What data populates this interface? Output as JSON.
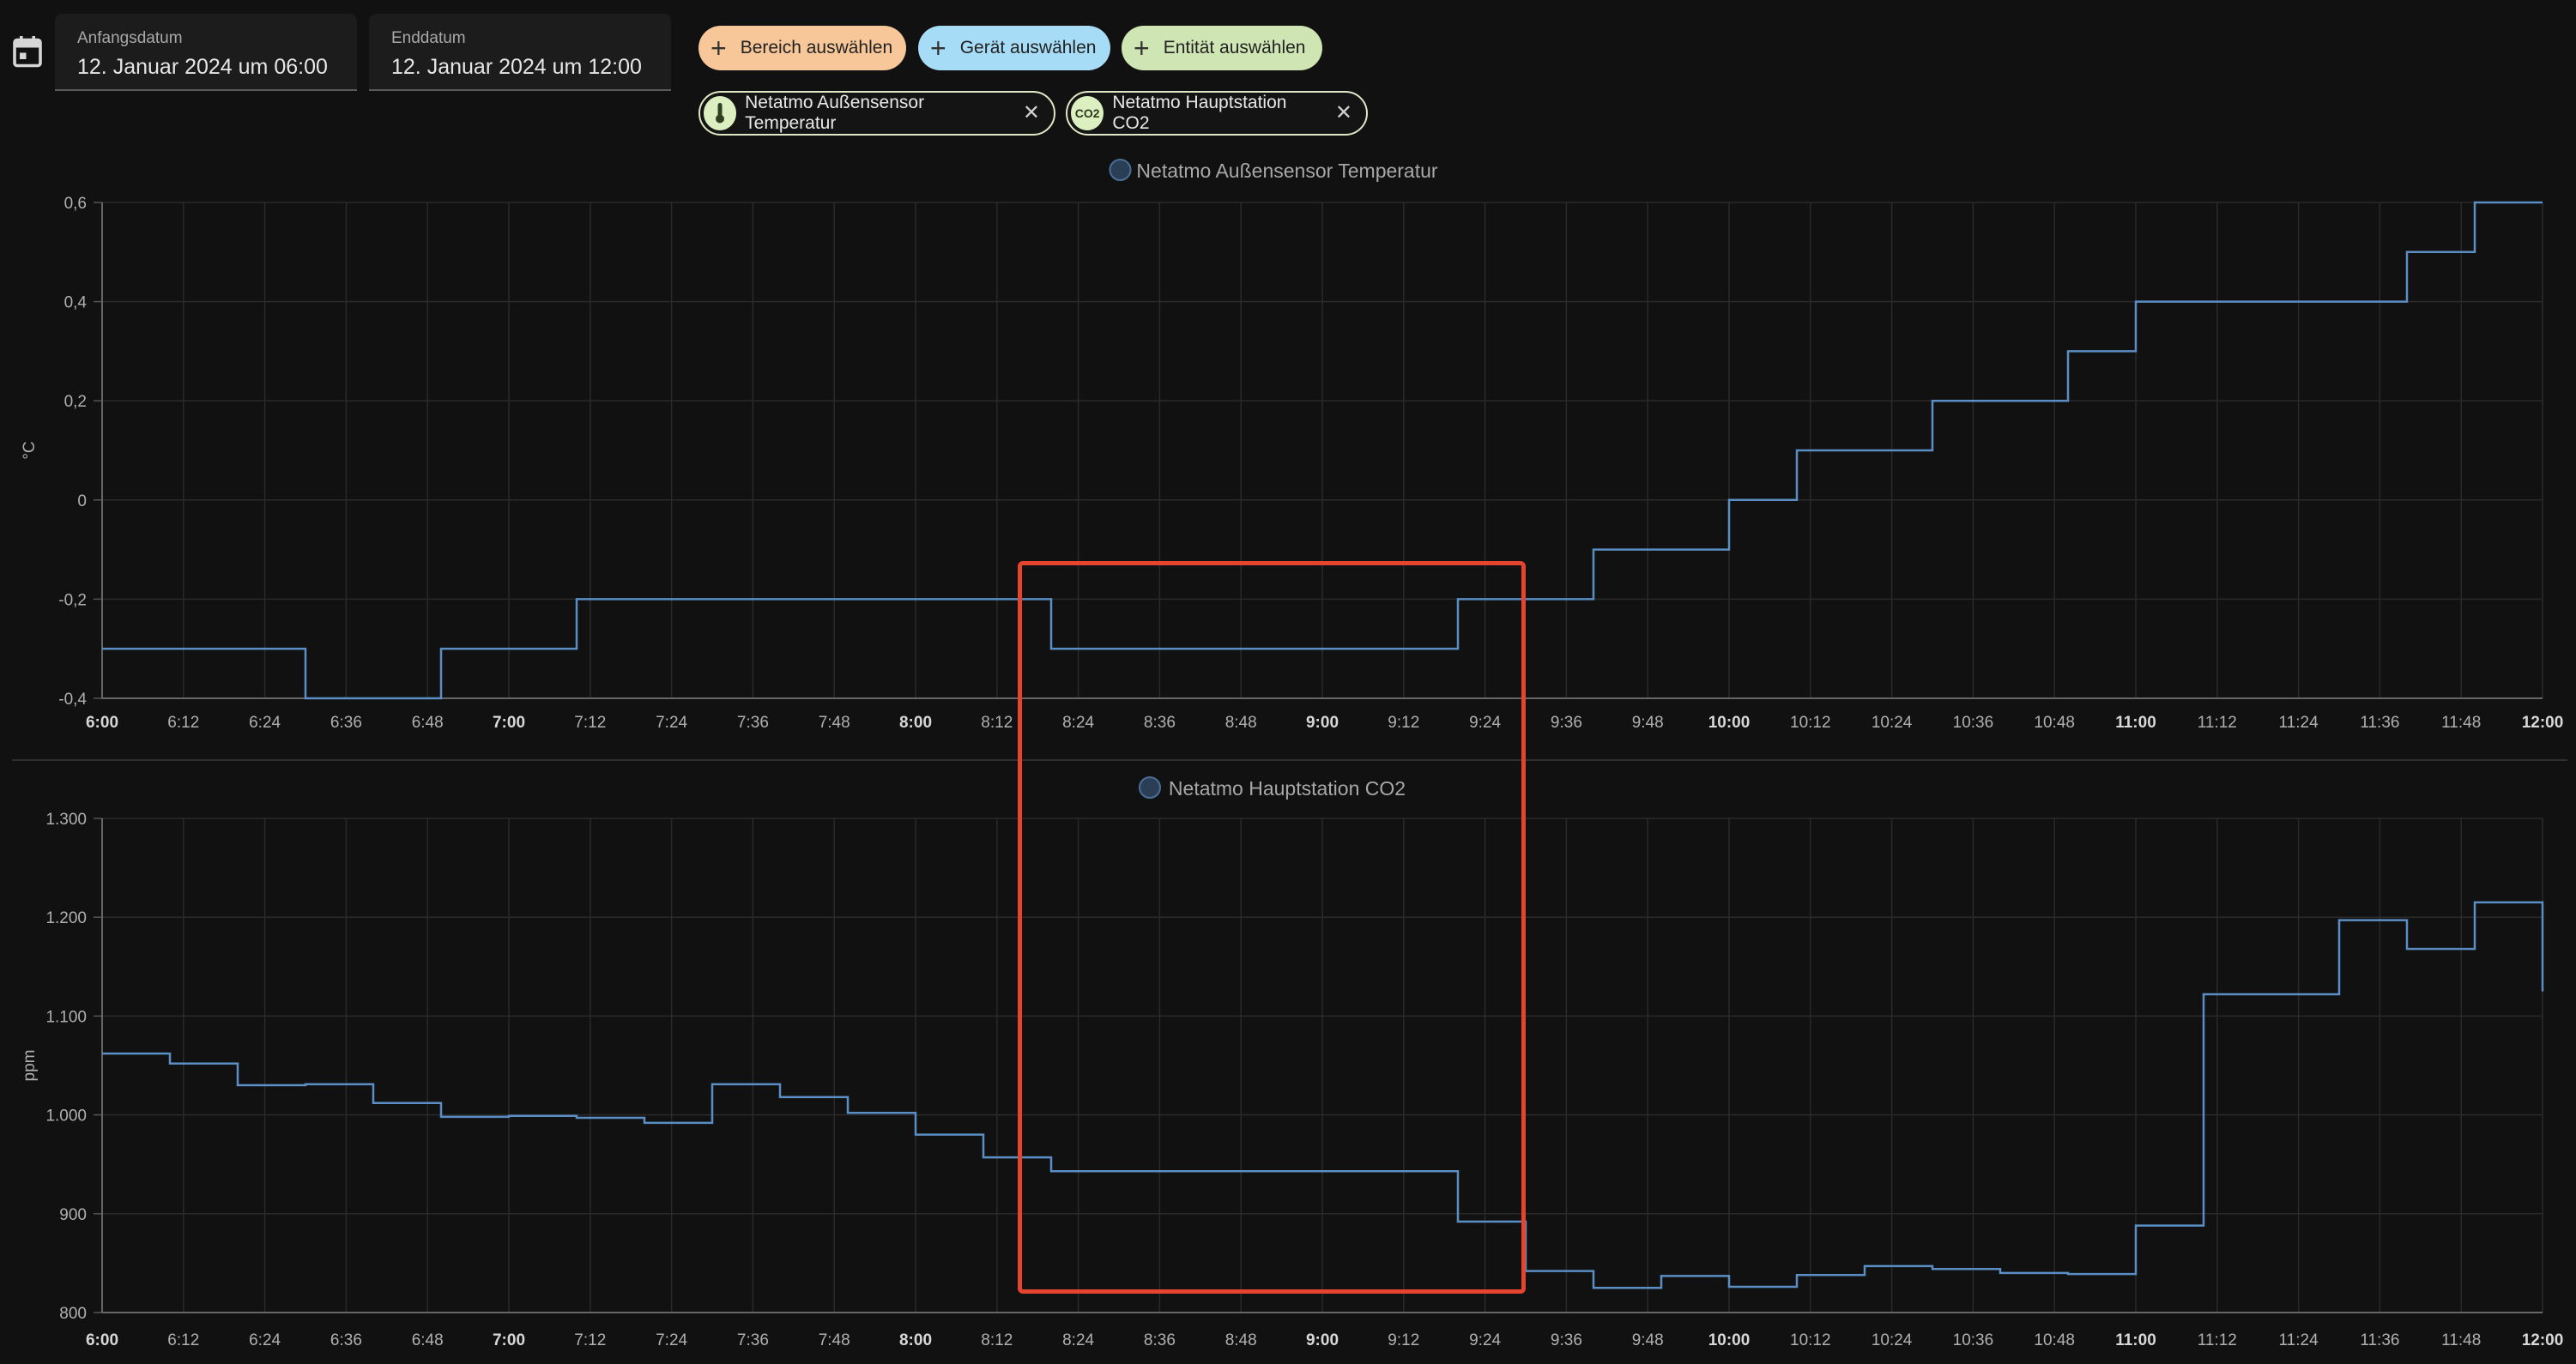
{
  "filters": {
    "start_date": {
      "label": "Anfangsdatum",
      "value": "12. Januar 2024 um 06:00"
    },
    "end_date": {
      "label": "Enddatum",
      "value": "12. Januar 2024 um 12:00"
    },
    "add_chips": [
      {
        "label": "Bereich auswählen",
        "color": "#f7c79a"
      },
      {
        "label": "Gerät auswählen",
        "color": "#a6dcf5"
      },
      {
        "label": "Entität auswählen",
        "color": "#cfe6b4"
      }
    ],
    "selected_entities": [
      {
        "label": "Netatmo Außensensor Temperatur",
        "icon": "thermometer-icon"
      },
      {
        "label": "Netatmo Hauptstation CO2",
        "avatar_text": "CO2",
        "icon": "co2-icon"
      }
    ]
  },
  "colors": {
    "line": "#5b8ec4",
    "grid": "#2a2a2a",
    "highlight": "#e5452e",
    "background": "#111111"
  },
  "chart_data": [
    {
      "type": "line",
      "legend": "Netatmo Außensensor Temperatur",
      "ylabel": "°C",
      "ylim": [
        -0.4,
        0.6
      ],
      "yticks": [
        "-0,4",
        "-0,2",
        "0",
        "0,2",
        "0,4",
        "0,6"
      ],
      "xlim": [
        "6:00",
        "12:00"
      ],
      "xticks": [
        "6:00",
        "6:12",
        "6:24",
        "6:36",
        "6:48",
        "7:00",
        "7:12",
        "7:24",
        "7:36",
        "7:48",
        "8:00",
        "8:12",
        "8:24",
        "8:36",
        "8:48",
        "9:00",
        "9:12",
        "9:24",
        "9:36",
        "9:48",
        "10:00",
        "10:12",
        "10:24",
        "10:36",
        "10:48",
        "11:00",
        "11:12",
        "11:24",
        "11:36",
        "11:48",
        "12:00"
      ],
      "step": true,
      "series": [
        {
          "x": [
            "6:00",
            "6:30",
            "6:50",
            "7:10",
            "8:20",
            "9:20",
            "9:40",
            "10:00",
            "10:10",
            "10:30",
            "10:50",
            "11:00",
            "11:40",
            "11:50",
            "12:00"
          ],
          "y": [
            -0.3,
            -0.4,
            -0.3,
            -0.2,
            -0.3,
            -0.2,
            -0.1,
            0.0,
            0.1,
            0.2,
            0.3,
            0.4,
            0.5,
            0.6,
            0.6
          ]
        }
      ]
    },
    {
      "type": "line",
      "legend": "Netatmo Hauptstation CO2",
      "ylabel": "ppm",
      "ylim": [
        800,
        1300
      ],
      "yticks": [
        "800",
        "900",
        "1.000",
        "1.100",
        "1.200",
        "1.300"
      ],
      "xlim": [
        "6:00",
        "12:00"
      ],
      "xticks": [
        "6:00",
        "6:12",
        "6:24",
        "6:36",
        "6:48",
        "7:00",
        "7:12",
        "7:24",
        "7:36",
        "7:48",
        "8:00",
        "8:12",
        "8:24",
        "8:36",
        "8:48",
        "9:00",
        "9:12",
        "9:24",
        "9:36",
        "9:48",
        "10:00",
        "10:12",
        "10:24",
        "10:36",
        "10:48",
        "11:00",
        "11:12",
        "11:24",
        "11:36",
        "11:48",
        "12:00"
      ],
      "step": true,
      "series": [
        {
          "x": [
            "6:00",
            "6:10",
            "6:20",
            "6:30",
            "6:40",
            "6:50",
            "7:00",
            "7:10",
            "7:20",
            "7:30",
            "7:40",
            "7:50",
            "8:00",
            "8:10",
            "8:20",
            "9:20",
            "9:30",
            "9:40",
            "9:50",
            "10:00",
            "10:10",
            "10:20",
            "10:30",
            "10:40",
            "10:50",
            "11:00",
            "11:10",
            "11:30",
            "11:40",
            "11:50",
            "12:00"
          ],
          "y": [
            1062,
            1052,
            1030,
            1031,
            1012,
            998,
            999,
            997,
            992,
            1031,
            1018,
            1002,
            980,
            957,
            943,
            892,
            842,
            825,
            837,
            826,
            838,
            847,
            844,
            840,
            839,
            888,
            1122,
            1197,
            1168,
            1215,
            1125
          ]
        }
      ]
    }
  ]
}
